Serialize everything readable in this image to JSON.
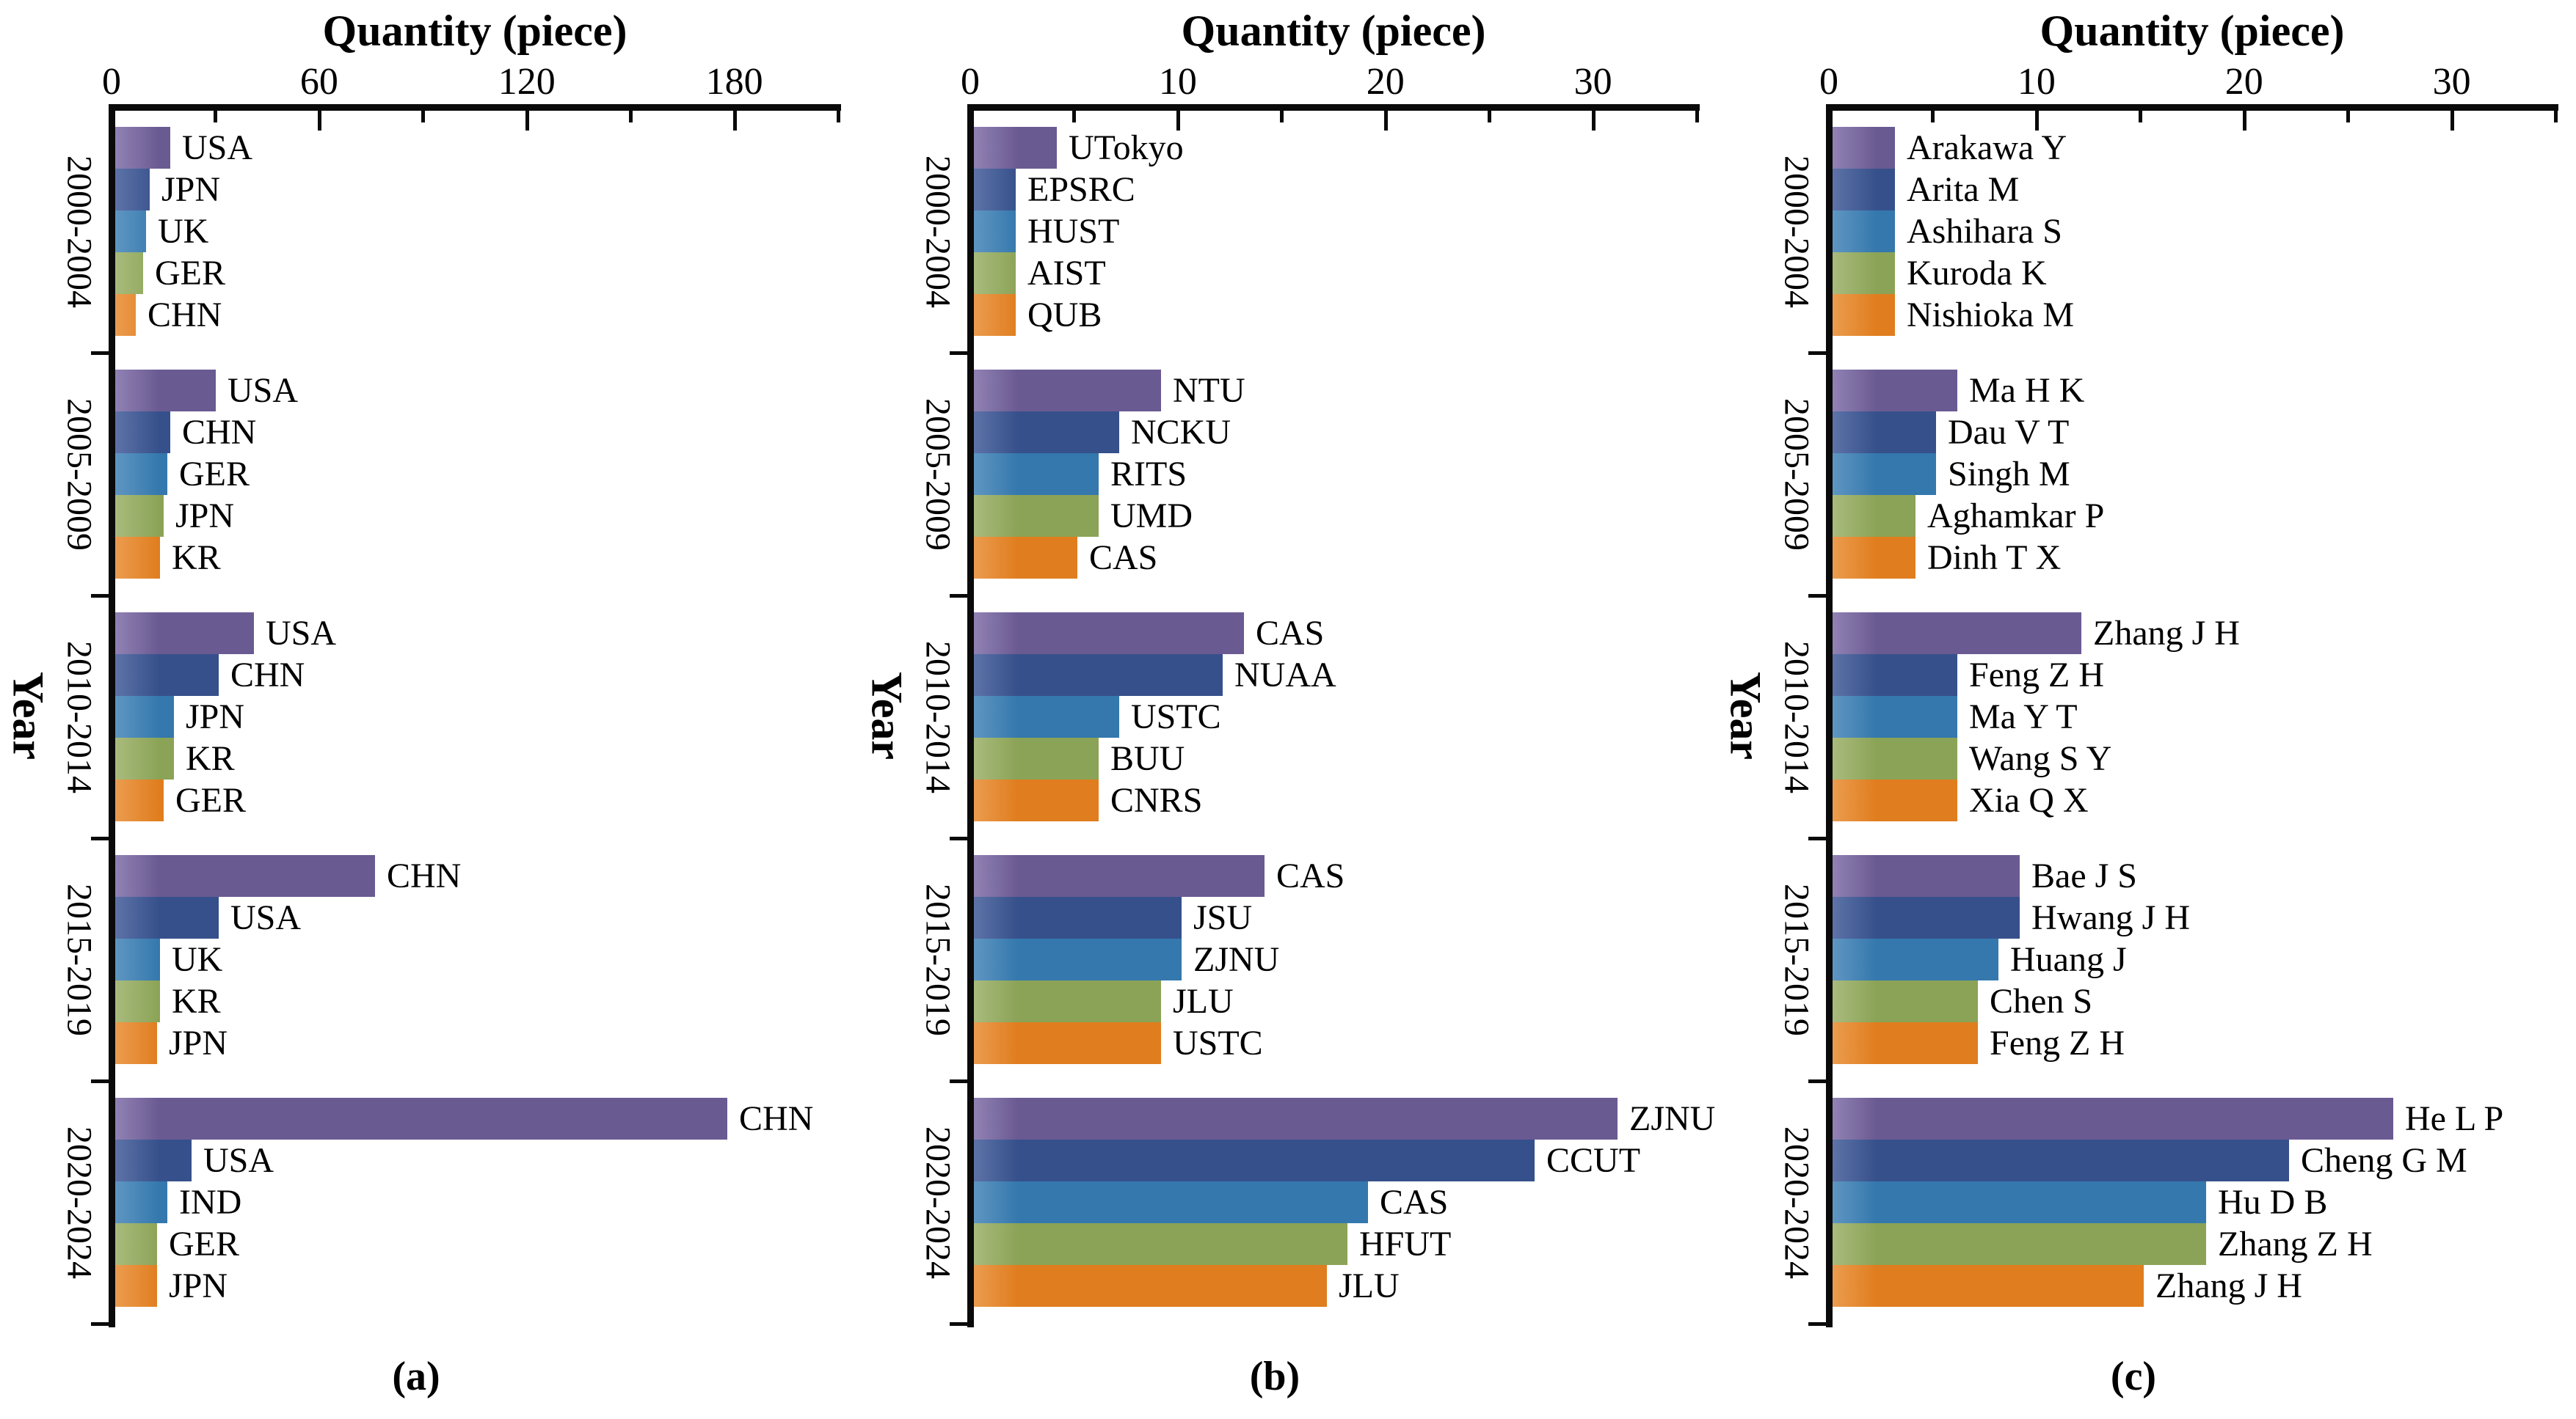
{
  "figure": {
    "background": "#ffffff"
  },
  "series_colors": [
    {
      "name": "purple",
      "base": "#6a5a92",
      "light": "#9182b4"
    },
    {
      "name": "navy",
      "base": "#36508b",
      "light": "#5d73a8"
    },
    {
      "name": "blue",
      "base": "#3478ad",
      "light": "#5f96c2"
    },
    {
      "name": "olive",
      "base": "#8ba356",
      "light": "#a9bb7d"
    },
    {
      "name": "orange",
      "base": "#e07d1e",
      "light": "#eb9c4f"
    }
  ],
  "chart_data": [
    {
      "type": "bar",
      "orientation": "horizontal",
      "panel_caption": "(a)",
      "title": "Quantity (piece)",
      "ylabel": "Year",
      "xlim": [
        0,
        210
      ],
      "x_major_ticks": [
        0,
        60,
        120,
        180
      ],
      "x_minor_ticks": [
        30,
        90,
        150,
        210
      ],
      "grid": false,
      "legend": "none",
      "groups": [
        {
          "period": "2000-2004",
          "bars": [
            {
              "label": "USA",
              "value": 16
            },
            {
              "label": "JPN",
              "value": 10
            },
            {
              "label": "UK",
              "value": 9
            },
            {
              "label": "GER",
              "value": 8
            },
            {
              "label": "CHN",
              "value": 6
            }
          ]
        },
        {
          "period": "2005-2009",
          "bars": [
            {
              "label": "USA",
              "value": 29
            },
            {
              "label": "CHN",
              "value": 16
            },
            {
              "label": "GER",
              "value": 15
            },
            {
              "label": "JPN",
              "value": 14
            },
            {
              "label": "KR",
              "value": 13
            }
          ]
        },
        {
          "period": "2010-2014",
          "bars": [
            {
              "label": "USA",
              "value": 40
            },
            {
              "label": "CHN",
              "value": 30
            },
            {
              "label": "JPN",
              "value": 17
            },
            {
              "label": "KR",
              "value": 17
            },
            {
              "label": "GER",
              "value": 14
            }
          ]
        },
        {
          "period": "2015-2019",
          "bars": [
            {
              "label": "CHN",
              "value": 75
            },
            {
              "label": "USA",
              "value": 30
            },
            {
              "label": "UK",
              "value": 13
            },
            {
              "label": "KR",
              "value": 13
            },
            {
              "label": "JPN",
              "value": 12
            }
          ]
        },
        {
          "period": "2020-2024",
          "bars": [
            {
              "label": "CHN",
              "value": 177
            },
            {
              "label": "USA",
              "value": 22
            },
            {
              "label": "IND",
              "value": 15
            },
            {
              "label": "GER",
              "value": 12
            },
            {
              "label": "JPN",
              "value": 12
            }
          ]
        }
      ]
    },
    {
      "type": "bar",
      "orientation": "horizontal",
      "panel_caption": "(b)",
      "title": "Quantity (piece)",
      "ylabel": "Year",
      "xlim": [
        0,
        35
      ],
      "x_major_ticks": [
        0,
        10,
        20,
        30
      ],
      "x_minor_ticks": [
        5,
        15,
        25,
        35
      ],
      "grid": false,
      "legend": "none",
      "groups": [
        {
          "period": "2000-2004",
          "bars": [
            {
              "label": "UTokyo",
              "value": 4
            },
            {
              "label": "EPSRC",
              "value": 2
            },
            {
              "label": "HUST",
              "value": 2
            },
            {
              "label": "AIST",
              "value": 2
            },
            {
              "label": "QUB",
              "value": 2
            }
          ]
        },
        {
          "period": "2005-2009",
          "bars": [
            {
              "label": "NTU",
              "value": 9
            },
            {
              "label": "NCKU",
              "value": 7
            },
            {
              "label": "RITS",
              "value": 6
            },
            {
              "label": "UMD",
              "value": 6
            },
            {
              "label": "CAS",
              "value": 5
            }
          ]
        },
        {
          "period": "2010-2014",
          "bars": [
            {
              "label": "CAS",
              "value": 13
            },
            {
              "label": "NUAA",
              "value": 12
            },
            {
              "label": "USTC",
              "value": 7
            },
            {
              "label": "BUU",
              "value": 6
            },
            {
              "label": "CNRS",
              "value": 6
            }
          ]
        },
        {
          "period": "2015-2019",
          "bars": [
            {
              "label": "CAS",
              "value": 14
            },
            {
              "label": "JSU",
              "value": 10
            },
            {
              "label": "ZJNU",
              "value": 10
            },
            {
              "label": "JLU",
              "value": 9
            },
            {
              "label": "USTC",
              "value": 9
            }
          ]
        },
        {
          "period": "2020-2024",
          "bars": [
            {
              "label": "ZJNU",
              "value": 31
            },
            {
              "label": "CCUT",
              "value": 27
            },
            {
              "label": "CAS",
              "value": 19
            },
            {
              "label": "HFUT",
              "value": 18
            },
            {
              "label": "JLU",
              "value": 17
            }
          ]
        }
      ]
    },
    {
      "type": "bar",
      "orientation": "horizontal",
      "panel_caption": "(c)",
      "title": "Quantity (piece)",
      "ylabel": "Year",
      "xlim": [
        0,
        35
      ],
      "x_major_ticks": [
        0,
        10,
        20,
        30
      ],
      "x_minor_ticks": [
        5,
        15,
        25,
        35
      ],
      "grid": false,
      "legend": "none",
      "groups": [
        {
          "period": "2000-2004",
          "bars": [
            {
              "label": "Arakawa Y",
              "value": 3
            },
            {
              "label": "Arita M",
              "value": 3
            },
            {
              "label": "Ashihara S",
              "value": 3
            },
            {
              "label": "Kuroda K",
              "value": 3
            },
            {
              "label": "Nishioka M",
              "value": 3
            }
          ]
        },
        {
          "period": "2005-2009",
          "bars": [
            {
              "label": "Ma H K",
              "value": 6
            },
            {
              "label": "Dau V T",
              "value": 5
            },
            {
              "label": "Singh M",
              "value": 5
            },
            {
              "label": "Aghamkar P",
              "value": 4
            },
            {
              "label": "Dinh T X",
              "value": 4
            }
          ]
        },
        {
          "period": "2010-2014",
          "bars": [
            {
              "label": "Zhang J H",
              "value": 12
            },
            {
              "label": "Feng Z H",
              "value": 6
            },
            {
              "label": "Ma Y T",
              "value": 6
            },
            {
              "label": "Wang S Y",
              "value": 6
            },
            {
              "label": "Xia Q X",
              "value": 6
            }
          ]
        },
        {
          "period": "2015-2019",
          "bars": [
            {
              "label": "Bae J S",
              "value": 9
            },
            {
              "label": "Hwang J H",
              "value": 9
            },
            {
              "label": "Huang J",
              "value": 8
            },
            {
              "label": "Chen S",
              "value": 7
            },
            {
              "label": "Feng Z H",
              "value": 7
            }
          ]
        },
        {
          "period": "2020-2024",
          "bars": [
            {
              "label": "He L P",
              "value": 27
            },
            {
              "label": "Cheng G M",
              "value": 22
            },
            {
              "label": "Hu D B",
              "value": 18
            },
            {
              "label": "Zhang Z H",
              "value": 18
            },
            {
              "label": "Zhang J H",
              "value": 15
            }
          ]
        }
      ]
    }
  ]
}
